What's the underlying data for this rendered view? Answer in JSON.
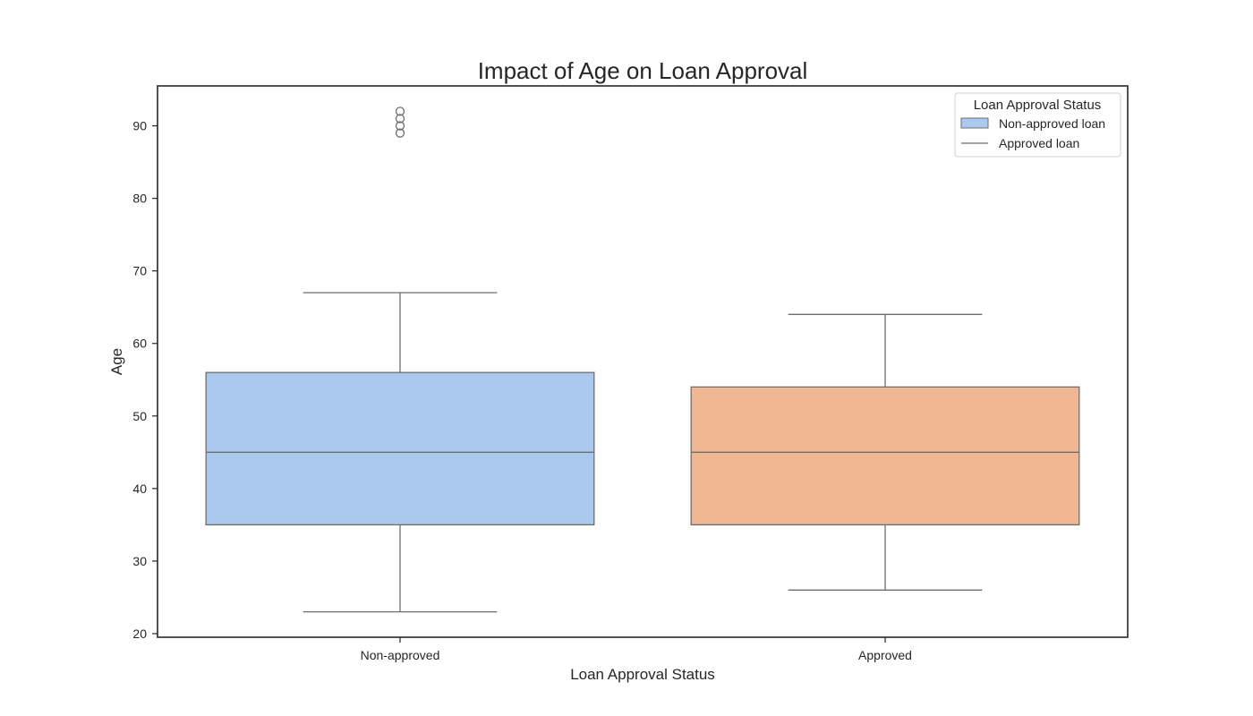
{
  "chart_data": {
    "type": "box",
    "title": "Impact of Age on Loan Approval",
    "xlabel": "Loan Approval Status",
    "ylabel": "Age",
    "categories": [
      "Non-approved",
      "Approved"
    ],
    "ylim": [
      19.5,
      95.5
    ],
    "yticks": [
      20,
      30,
      40,
      50,
      60,
      70,
      80,
      90
    ],
    "grid": false,
    "legend": {
      "title": "Loan Approval Status",
      "placement": "top-right",
      "entries": [
        {
          "label": "Non-approved loan",
          "kind": "patch",
          "color": "#abc9ee"
        },
        {
          "label": "Approved loan",
          "kind": "line",
          "color": "#6e6e6e"
        }
      ]
    },
    "series": [
      {
        "category": "Non-approved",
        "color": "#abc9ee",
        "whisker_low": 23,
        "q1": 35,
        "median": 45,
        "q3": 56,
        "whisker_high": 67,
        "outliers": [
          89,
          90,
          91,
          92
        ]
      },
      {
        "category": "Approved",
        "color": "#f0b793",
        "whisker_low": 26,
        "q1": 35,
        "median": 45,
        "q3": 54,
        "whisker_high": 64,
        "outliers": []
      }
    ],
    "line_color": "#6e6e6e"
  }
}
